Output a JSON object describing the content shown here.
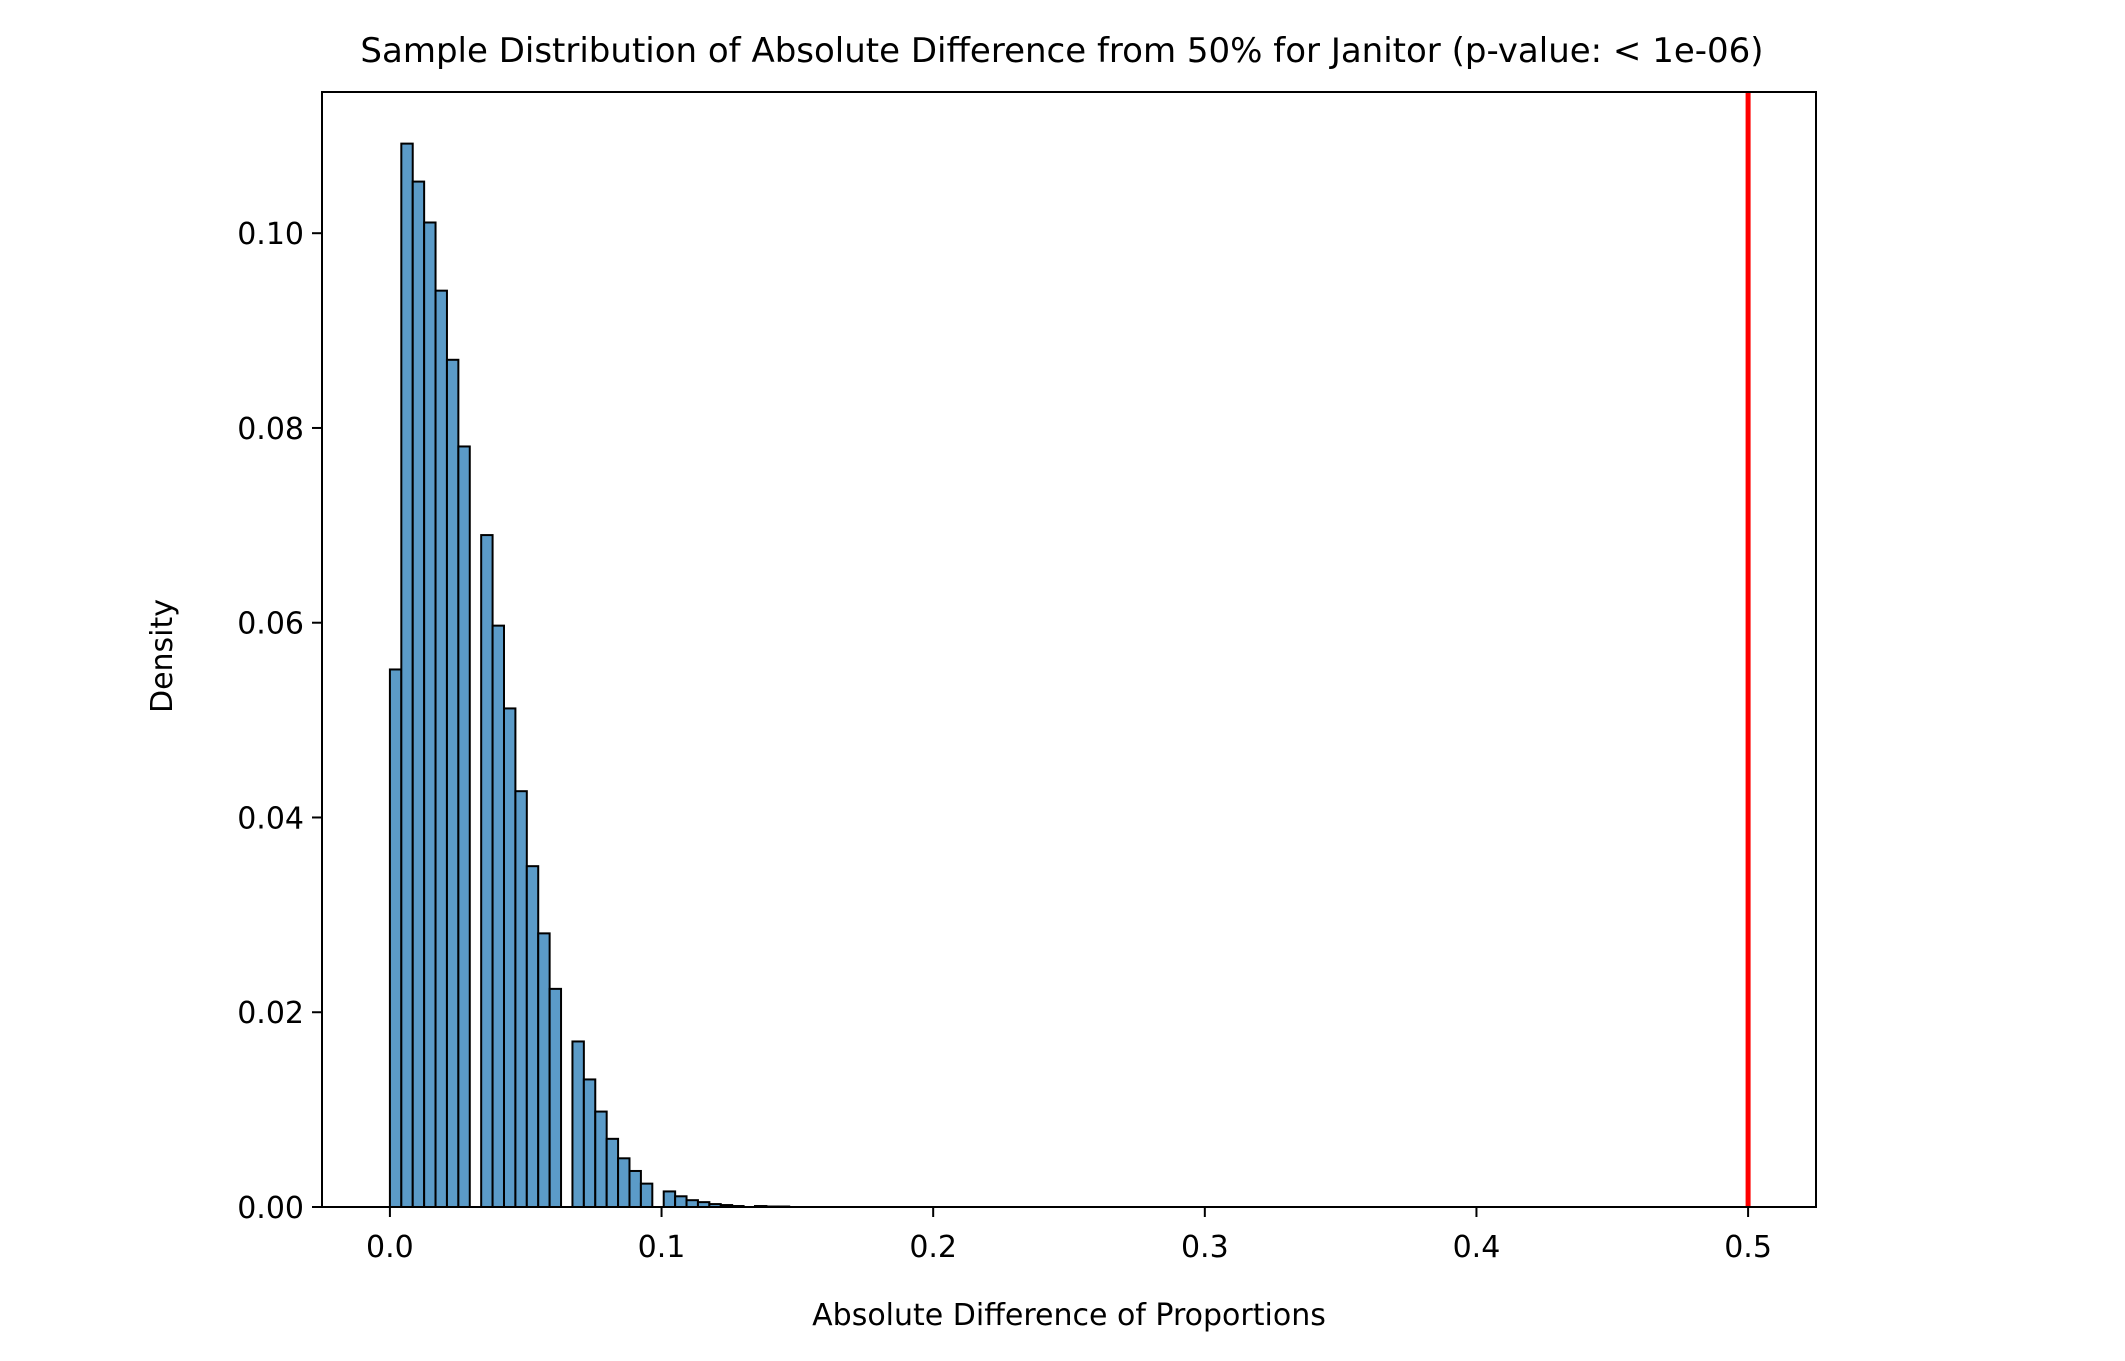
{
  "chart_data": {
    "type": "bar",
    "title": "Sample Distribution of Absolute Difference from 50% for Janitor (p-value: < 1e-06)",
    "xlabel": "Absolute Difference of Proportions",
    "ylabel": "Density",
    "xlim": [
      -0.025,
      0.525
    ],
    "ylim": [
      0,
      0.1145
    ],
    "xticks": [
      0.0,
      0.1,
      0.2,
      0.3,
      0.4,
      0.5
    ],
    "xtick_labels": [
      "0.0",
      "0.1",
      "0.2",
      "0.3",
      "0.4",
      "0.5"
    ],
    "yticks": [
      0.0,
      0.02,
      0.04,
      0.06,
      0.08,
      0.1
    ],
    "ytick_labels": [
      "0.00",
      "0.02",
      "0.04",
      "0.06",
      "0.08",
      "0.10"
    ],
    "bin_width": 0.0042,
    "bins": [
      {
        "x": 0.0,
        "y": 0.0552
      },
      {
        "x": 0.0042,
        "y": 0.1092
      },
      {
        "x": 0.0084,
        "y": 0.1053
      },
      {
        "x": 0.0126,
        "y": 0.1011
      },
      {
        "x": 0.0168,
        "y": 0.0941
      },
      {
        "x": 0.021,
        "y": 0.087
      },
      {
        "x": 0.0252,
        "y": 0.0781
      },
      {
        "x": 0.0336,
        "y": 0.069
      },
      {
        "x": 0.0378,
        "y": 0.0597
      },
      {
        "x": 0.042,
        "y": 0.0512
      },
      {
        "x": 0.0462,
        "y": 0.0427
      },
      {
        "x": 0.0504,
        "y": 0.035
      },
      {
        "x": 0.0546,
        "y": 0.0281
      },
      {
        "x": 0.0588,
        "y": 0.0224
      },
      {
        "x": 0.0672,
        "y": 0.017
      },
      {
        "x": 0.0714,
        "y": 0.0131
      },
      {
        "x": 0.0756,
        "y": 0.0098
      },
      {
        "x": 0.0798,
        "y": 0.007
      },
      {
        "x": 0.084,
        "y": 0.005
      },
      {
        "x": 0.0882,
        "y": 0.0037
      },
      {
        "x": 0.0924,
        "y": 0.0024
      },
      {
        "x": 0.1008,
        "y": 0.0016
      },
      {
        "x": 0.105,
        "y": 0.0011
      },
      {
        "x": 0.1092,
        "y": 0.0007
      },
      {
        "x": 0.1134,
        "y": 0.0005
      },
      {
        "x": 0.1176,
        "y": 0.0003
      },
      {
        "x": 0.1218,
        "y": 0.0002
      },
      {
        "x": 0.126,
        "y": 0.0001
      },
      {
        "x": 0.1344,
        "y": 0.0001
      },
      {
        "x": 0.1386,
        "y": 5e-05
      },
      {
        "x": 0.1428,
        "y": 5e-05
      }
    ],
    "observed_line": {
      "x": 0.5,
      "color": "#ff0000"
    },
    "bar_color": "#5b9bc8",
    "bar_edge_color": "#000000",
    "grid": false,
    "legend": "none"
  }
}
